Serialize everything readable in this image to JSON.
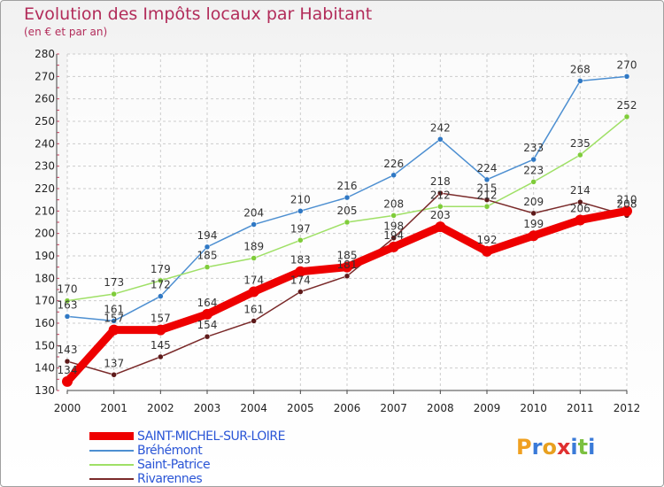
{
  "chart_data": {
    "type": "line",
    "title": "Evolution des Impôts locaux par Habitant",
    "subtitle": "(en € et par an)",
    "xlabel": "",
    "ylabel": "",
    "ylim": [
      130,
      280
    ],
    "yticks": [
      130,
      140,
      150,
      160,
      170,
      180,
      190,
      200,
      210,
      220,
      230,
      240,
      250,
      260,
      270,
      280
    ],
    "categories": [
      "2000",
      "2001",
      "2002",
      "2003",
      "2004",
      "2005",
      "2006",
      "2007",
      "2008",
      "2009",
      "2010",
      "2011",
      "2012"
    ],
    "grid": true,
    "legend_position": "bottom-left",
    "series": [
      {
        "name": "Bréhémont",
        "color": "#4d8fd1",
        "marker_color": "#2f78c4",
        "values": [
          163,
          161,
          172,
          194,
          204,
          210,
          216,
          226,
          242,
          224,
          233,
          268,
          270
        ]
      },
      {
        "name": "Saint-Patrice",
        "color": "#9fe066",
        "marker_color": "#7fcc3a",
        "values": [
          170,
          173,
          179,
          185,
          189,
          197,
          205,
          208,
          212,
          212,
          223,
          235,
          252
        ]
      },
      {
        "name": "Rivarennes",
        "color": "#7a2a2a",
        "marker_color": "#5e1a1a",
        "values": [
          143,
          137,
          145,
          154,
          161,
          174,
          181,
          198,
          218,
          215,
          209,
          214,
          208
        ]
      },
      {
        "name": "SAINT-MICHEL-SUR-LOIRE",
        "color": "#ee0000",
        "marker_color": "#ee0000",
        "values": [
          134,
          157,
          157,
          164,
          174,
          183,
          185,
          194,
          203,
          192,
          199,
          206,
          210
        ]
      }
    ]
  },
  "legend": {
    "items": [
      {
        "label": "SAINT-MICHEL-SUR-LOIRE",
        "color": "#ee0000"
      },
      {
        "label": "Bréhémont",
        "color": "#4d8fd1"
      },
      {
        "label": "Saint-Patrice",
        "color": "#9fe066"
      },
      {
        "label": "Rivarennes",
        "color": "#7a2a2a"
      }
    ]
  },
  "logo": {
    "letters": [
      "P",
      "r",
      "o",
      "x",
      "i",
      "t",
      "i"
    ],
    "colors": [
      "#f0a020",
      "#3a7ad8",
      "#e8a020",
      "#e03030",
      "#3a7ad8",
      "#7cc040",
      "#3a7ad8"
    ]
  }
}
